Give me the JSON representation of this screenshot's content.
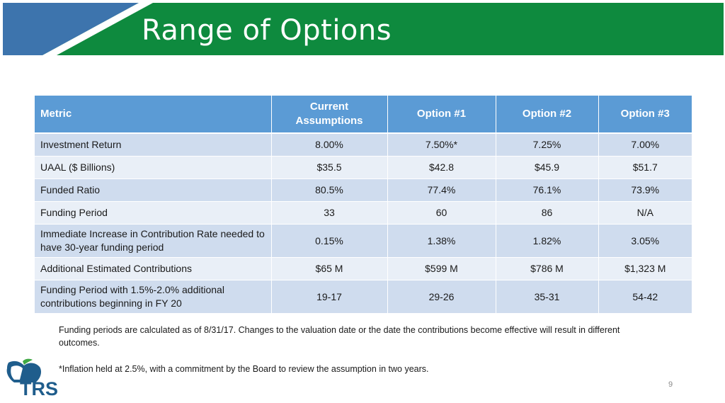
{
  "slide": {
    "title": "Range of Options",
    "page_number": "9",
    "colors": {
      "banner_green": "#0e8a3e",
      "banner_blue": "#3d74ad",
      "header_blue": "#5b9bd5"
    }
  },
  "table": {
    "headers": [
      "Metric",
      "Current Assumptions",
      "Option #1",
      "Option #2",
      "Option #3"
    ],
    "rows": [
      [
        "Investment Return",
        "8.00%",
        "7.50%*",
        "7.25%",
        "7.00%"
      ],
      [
        "UAAL ($ Billions)",
        "$35.5",
        "$42.8",
        "$45.9",
        "$51.7"
      ],
      [
        "Funded Ratio",
        "80.5%",
        "77.4%",
        "76.1%",
        "73.9%"
      ],
      [
        "Funding Period",
        "33",
        "60",
        "86",
        "N/A"
      ],
      [
        "Immediate Increase in Contribution Rate needed to have 30-year funding period",
        "0.15%",
        "1.38%",
        "1.82%",
        "3.05%"
      ],
      [
        "Additional Estimated Contributions",
        "$65 M",
        "$599 M",
        "$786 M",
        "$1,323 M"
      ],
      [
        "Funding Period with 1.5%-2.0% additional contributions beginning in FY 20",
        "19-17",
        "29-26",
        "35-31",
        "54-42"
      ]
    ]
  },
  "notes": {
    "funding_note": "Funding periods are calculated as of 8/31/17. Changes to the valuation date or the date the contributions become effective will result in different outcomes.",
    "inflation_note": "*Inflation held at 2.5%, with a commitment by the Board to review the assumption in two years."
  },
  "logo": {
    "text": "TRS",
    "icon": "apple-logo-icon"
  }
}
